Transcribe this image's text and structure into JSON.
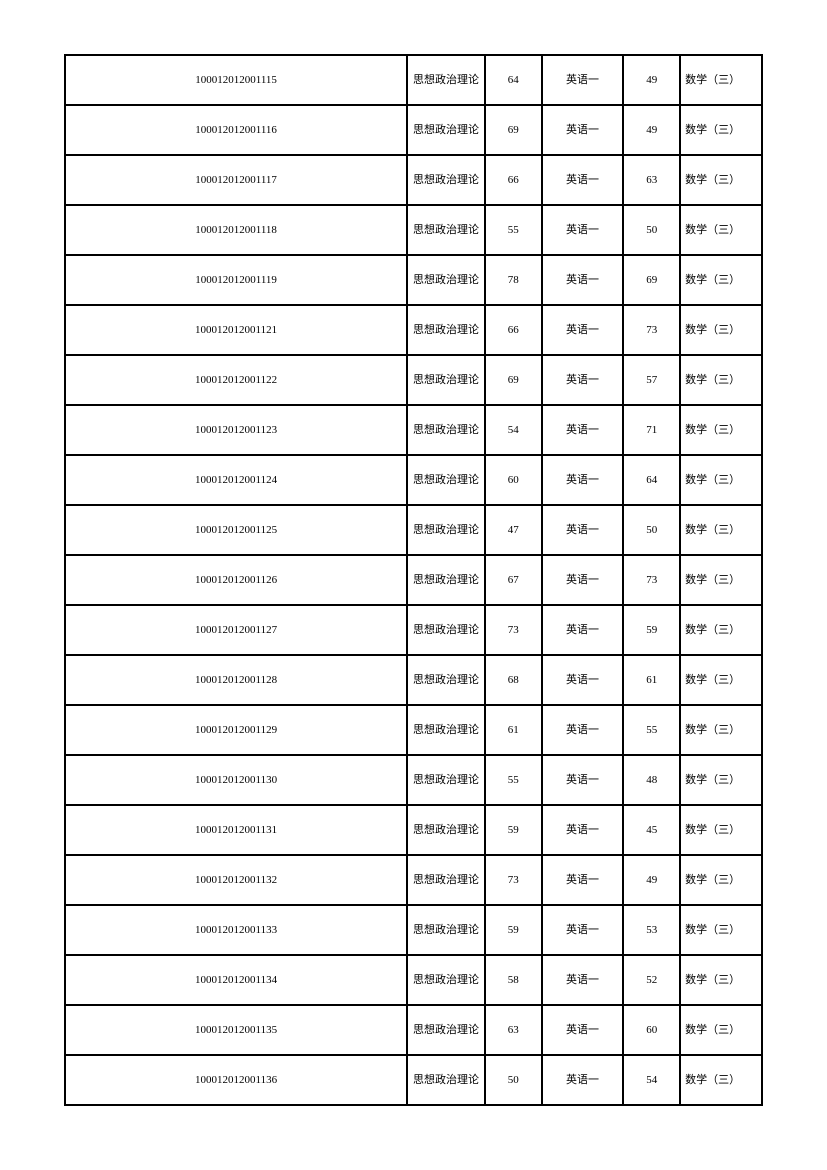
{
  "table": {
    "columns": [
      {
        "key": "id",
        "class": "col-id"
      },
      {
        "key": "sub1",
        "class": "col-sub1"
      },
      {
        "key": "sc1",
        "class": "col-sc1"
      },
      {
        "key": "sub2",
        "class": "col-sub2"
      },
      {
        "key": "sc2",
        "class": "col-sc2"
      },
      {
        "key": "sub3",
        "class": "col-sub3"
      }
    ],
    "rows": [
      {
        "id": "100012012001115",
        "sub1": "思想政治理论",
        "sc1": "64",
        "sub2": "英语一",
        "sc2": "49",
        "sub3": "数学（三）"
      },
      {
        "id": "100012012001116",
        "sub1": "思想政治理论",
        "sc1": "69",
        "sub2": "英语一",
        "sc2": "49",
        "sub3": "数学（三）"
      },
      {
        "id": "100012012001117",
        "sub1": "思想政治理论",
        "sc1": "66",
        "sub2": "英语一",
        "sc2": "63",
        "sub3": "数学（三）"
      },
      {
        "id": "100012012001118",
        "sub1": "思想政治理论",
        "sc1": "55",
        "sub2": "英语一",
        "sc2": "50",
        "sub3": "数学（三）"
      },
      {
        "id": "100012012001119",
        "sub1": "思想政治理论",
        "sc1": "78",
        "sub2": "英语一",
        "sc2": "69",
        "sub3": "数学（三）"
      },
      {
        "id": "100012012001121",
        "sub1": "思想政治理论",
        "sc1": "66",
        "sub2": "英语一",
        "sc2": "73",
        "sub3": "数学（三）"
      },
      {
        "id": "100012012001122",
        "sub1": "思想政治理论",
        "sc1": "69",
        "sub2": "英语一",
        "sc2": "57",
        "sub3": "数学（三）"
      },
      {
        "id": "100012012001123",
        "sub1": "思想政治理论",
        "sc1": "54",
        "sub2": "英语一",
        "sc2": "71",
        "sub3": "数学（三）"
      },
      {
        "id": "100012012001124",
        "sub1": "思想政治理论",
        "sc1": "60",
        "sub2": "英语一",
        "sc2": "64",
        "sub3": "数学（三）"
      },
      {
        "id": "100012012001125",
        "sub1": "思想政治理论",
        "sc1": "47",
        "sub2": "英语一",
        "sc2": "50",
        "sub3": "数学（三）"
      },
      {
        "id": "100012012001126",
        "sub1": "思想政治理论",
        "sc1": "67",
        "sub2": "英语一",
        "sc2": "73",
        "sub3": "数学（三）"
      },
      {
        "id": "100012012001127",
        "sub1": "思想政治理论",
        "sc1": "73",
        "sub2": "英语一",
        "sc2": "59",
        "sub3": "数学（三）"
      },
      {
        "id": "100012012001128",
        "sub1": "思想政治理论",
        "sc1": "68",
        "sub2": "英语一",
        "sc2": "61",
        "sub3": "数学（三）"
      },
      {
        "id": "100012012001129",
        "sub1": "思想政治理论",
        "sc1": "61",
        "sub2": "英语一",
        "sc2": "55",
        "sub3": "数学（三）"
      },
      {
        "id": "100012012001130",
        "sub1": "思想政治理论",
        "sc1": "55",
        "sub2": "英语一",
        "sc2": "48",
        "sub3": "数学（三）"
      },
      {
        "id": "100012012001131",
        "sub1": "思想政治理论",
        "sc1": "59",
        "sub2": "英语一",
        "sc2": "45",
        "sub3": "数学（三）"
      },
      {
        "id": "100012012001132",
        "sub1": "思想政治理论",
        "sc1": "73",
        "sub2": "英语一",
        "sc2": "49",
        "sub3": "数学（三）"
      },
      {
        "id": "100012012001133",
        "sub1": "思想政治理论",
        "sc1": "59",
        "sub2": "英语一",
        "sc2": "53",
        "sub3": "数学（三）"
      },
      {
        "id": "100012012001134",
        "sub1": "思想政治理论",
        "sc1": "58",
        "sub2": "英语一",
        "sc2": "52",
        "sub3": "数学（三）"
      },
      {
        "id": "100012012001135",
        "sub1": "思想政治理论",
        "sc1": "63",
        "sub2": "英语一",
        "sc2": "60",
        "sub3": "数学（三）"
      },
      {
        "id": "100012012001136",
        "sub1": "思想政治理论",
        "sc1": "50",
        "sub2": "英语一",
        "sc2": "54",
        "sub3": "数学（三）"
      }
    ]
  }
}
